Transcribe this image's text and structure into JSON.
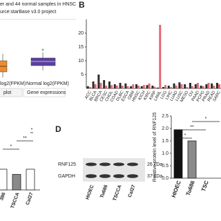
{
  "panel_a": {
    "title_lines": [
      "er and 44 normal samples in HNSC",
      "urce:starBase v3.0 project"
    ],
    "axis_labels": [
      "log2(FPKM)",
      "Normal log2(FPKM)"
    ],
    "tabs": [
      "plot",
      "Gene expressions"
    ]
  },
  "panel_b": {
    "label": "B",
    "ylim": [
      0,
      25
    ],
    "yticks": [
      5,
      10,
      15,
      20
    ],
    "categories": [
      "ACC",
      "BLCA",
      "BRCA",
      "CESC",
      "CHOL",
      "COAD",
      "DLBC",
      "ESCA",
      "GBM",
      "HNSC",
      "KICH",
      "KIRC",
      "KIRP",
      "LAML",
      "LGG",
      "LIHC",
      "LUAD",
      "LUSC",
      "MESO",
      "OV",
      "PAAD",
      "PCPG",
      "PRAD",
      "READ",
      "SARC"
    ],
    "series": [
      {
        "color": "#2b2b2b",
        "values": [
          0.8,
          2.5,
          5.0,
          3.0,
          2.5,
          1.5,
          2.0,
          1.8,
          0.8,
          1.5,
          0.8,
          1.2,
          1.0,
          0.3,
          0.5,
          1.0,
          1.8,
          2.2,
          1.5,
          2.0,
          1.5,
          1.0,
          1.5,
          1.8,
          2.0
        ]
      },
      {
        "color": "#e8646e",
        "values": [
          0.5,
          1.5,
          2.0,
          1.0,
          1.2,
          1.0,
          1.0,
          0.8,
          1.5,
          1.0,
          1.2,
          1.8,
          0.6,
          23.0,
          1.2,
          0.5,
          1.0,
          1.5,
          0.5,
          0.8,
          2.0,
          0.8,
          2.0,
          1.0,
          1.5
        ]
      }
    ]
  },
  "panel_c": {
    "ylim": [
      0,
      1.5
    ],
    "categories": [
      "386",
      "TSCCA",
      "Cal27"
    ],
    "values": [
      0.6,
      0.45,
      0.6
    ],
    "colors": [
      "#ffffff",
      "#8a8a8a",
      "#ffffff"
    ],
    "significance": [
      "*",
      "**",
      "*"
    ]
  },
  "panel_d": {
    "label": "D",
    "bands": [
      "RNF125",
      "GAPDH"
    ],
    "sizes": [
      "26 kDa",
      "37 kDa"
    ],
    "lanes": [
      "HIOEC",
      "Tu686",
      "TSCCA",
      "Cal27"
    ],
    "chart": {
      "y_label": "Relative protein level of RNF125",
      "ylim": [
        0,
        2.5
      ],
      "yticks": [
        {
          "value": 0,
          "label": "0.0"
        },
        {
          "value": 0.5,
          "label": "0.5"
        },
        {
          "value": 1,
          "label": "1.0"
        },
        {
          "value": 1.5,
          "label": "1.5"
        },
        {
          "value": 2,
          "label": "2.0"
        },
        {
          "value": 2.5,
          "label": "2.5"
        }
      ],
      "categories": [
        "HIOEC",
        "Tu686",
        "TSC"
      ],
      "values": [
        1.95,
        1.5,
        null
      ],
      "colors": [
        "#111111",
        "#8a8a8a",
        "#ffffff"
      ],
      "significance": [
        "*",
        "**",
        "*"
      ]
    }
  }
}
